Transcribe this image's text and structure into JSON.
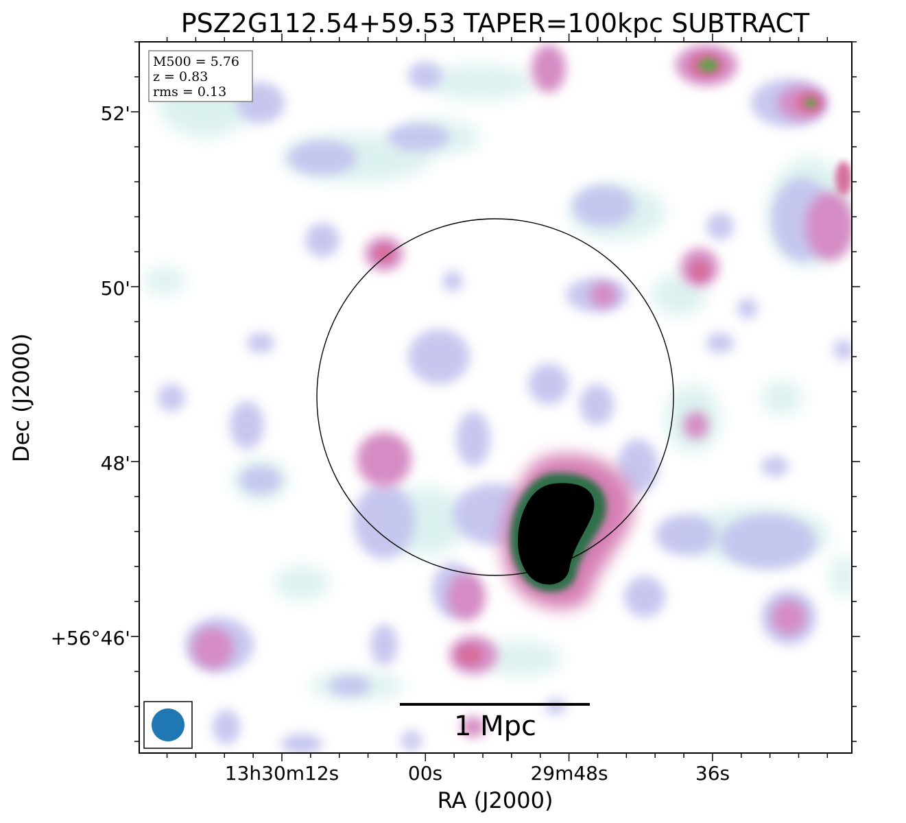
{
  "title": "PSZ2G112.54+59.53 TAPER=100kpc SUBTRACT",
  "axes": {
    "xlabel": "RA (J2000)",
    "ylabel": "Dec (J2000)",
    "x_ticks": [
      "13h30m12s",
      "00s",
      "29m48s",
      "36s"
    ],
    "y_ticks": [
      "52'",
      "50'",
      "48'",
      "+56°46'"
    ]
  },
  "info_box": {
    "lines": [
      "M500 = 5.76",
      "z = 0.83",
      "rms = 0.13"
    ]
  },
  "scale_bar": {
    "label": "1 Mpc"
  },
  "colors": {
    "beam": "#1f77b4",
    "core": "#000000",
    "low_emission": "#c8c8f0",
    "mid_emission": "#d890c8",
    "high_emission": "#d86a98",
    "faint_emission": "#d8f0ee"
  },
  "icons": {
    "beam": "beam-ellipse-icon"
  }
}
